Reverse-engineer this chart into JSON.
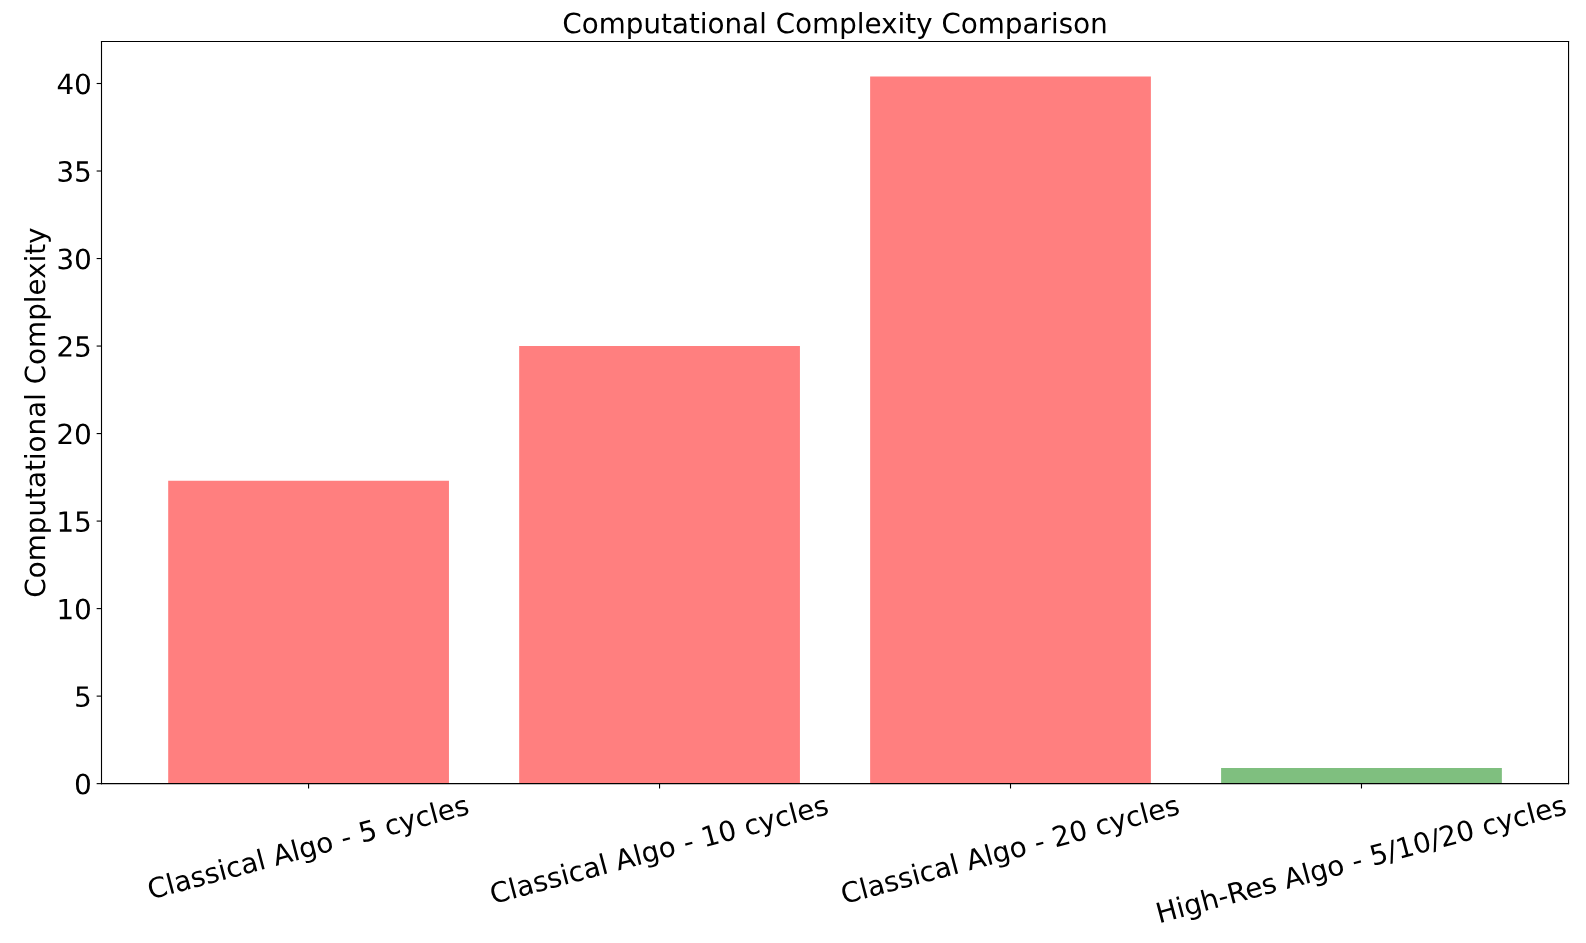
{
  "chart_data": {
    "type": "bar",
    "title": "Computational Complexity Comparison",
    "ylabel": "Computational Complexity",
    "categories": [
      "Classical Algo - 5 cycles",
      "Classical Algo - 10 cycles",
      "Classical Algo - 20 cycles",
      "High-Res Algo - 5/10/20 cycles"
    ],
    "values": [
      17.3,
      25,
      40.4,
      0.9
    ],
    "colors": [
      "#ff7f7f",
      "#ff7f7f",
      "#ff7f7f",
      "#7fbf7f"
    ],
    "ylim": [
      0,
      42.4
    ],
    "yticks": [
      0,
      5,
      10,
      15,
      20,
      25,
      30,
      35,
      40
    ],
    "grid": false,
    "legend": false
  }
}
